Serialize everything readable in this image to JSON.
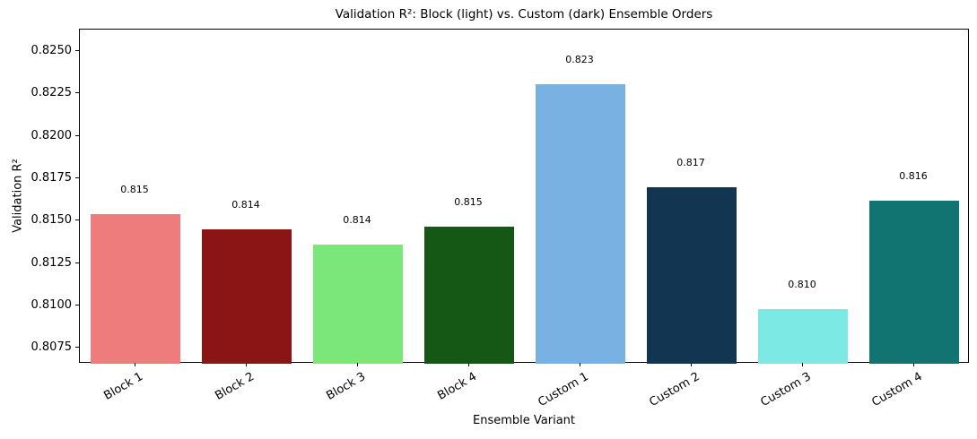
{
  "chart_data": {
    "type": "bar",
    "title": "Validation R²: Block (light) vs. Custom (dark) Ensemble Orders",
    "xlabel": "Ensemble Variant",
    "ylabel": "Validation R²",
    "categories": [
      "Block 1",
      "Block 2",
      "Block 3",
      "Block 4",
      "Custom 1",
      "Custom 2",
      "Custom 3",
      "Custom 4"
    ],
    "values": [
      0.8154,
      0.8145,
      0.8136,
      0.8147,
      0.8231,
      0.817,
      0.8098,
      0.8162
    ],
    "bar_labels": [
      "0.815",
      "0.814",
      "0.814",
      "0.815",
      "0.823",
      "0.817",
      "0.810",
      "0.816"
    ],
    "bar_colors": [
      "#EE7C7C",
      "#8B1515",
      "#7BE77B",
      "#155715",
      "#79B1E3",
      "#123552",
      "#7CE9E4",
      "#117470"
    ],
    "ylim": [
      0.8066,
      0.8263
    ],
    "yticks": [
      0.8075,
      0.81,
      0.8125,
      0.815,
      0.8175,
      0.82,
      0.8225,
      0.825
    ],
    "ytick_labels": [
      "0.8075",
      "0.8100",
      "0.8125",
      "0.8150",
      "0.8175",
      "0.8200",
      "0.8225",
      "0.8250"
    ],
    "grid": false,
    "legend": null,
    "x_tick_rotation_deg": 30,
    "bar_width_fraction": 0.8,
    "background_color": "#ffffff",
    "axis_color": "#000000"
  }
}
